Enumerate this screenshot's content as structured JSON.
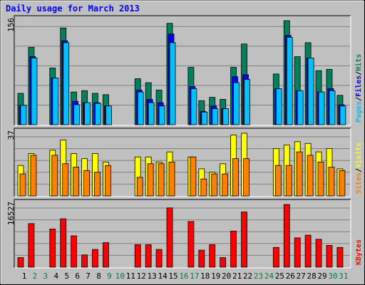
{
  "chart_data": {
    "type": "bar",
    "title": "Daily usage for March 2013",
    "x": [
      1,
      2,
      3,
      4,
      5,
      6,
      7,
      8,
      9,
      10,
      11,
      12,
      13,
      14,
      15,
      16,
      17,
      18,
      19,
      20,
      21,
      22,
      23,
      24,
      25,
      26,
      27,
      28,
      29,
      30,
      31
    ],
    "x_label_colors": [
      "#000000",
      "#008040",
      "#008040",
      "#000000",
      "#000000",
      "#000000",
      "#000000",
      "#000000",
      "#008040",
      "#008040",
      "#000000",
      "#000000",
      "#000000",
      "#000000",
      "#000000",
      "#008040",
      "#008040",
      "#000000",
      "#000000",
      "#000000",
      "#000000",
      "#000000",
      "#008040",
      "#008040",
      "#000000",
      "#000000",
      "#000000",
      "#000000",
      "#000000",
      "#008040",
      "#008040"
    ],
    "legend_separator": "/",
    "panels": [
      {
        "ylim": [
          0,
          156
        ],
        "series": [
          {
            "name": "Hits",
            "color": "#00805c",
            "values": [
              47,
              116,
              0,
              85,
              145,
              49,
              51,
              47,
              45,
              0,
              0,
              69,
              63,
              52,
              152,
              0,
              86,
              36,
              41,
              38,
              86,
              121,
              0,
              0,
              76,
              156,
              102,
              123,
              81,
              83,
              44
            ]
          },
          {
            "name": "Files",
            "color": "#0000ff",
            "values": [
              29,
              102,
              0,
              70,
              126,
              35,
              33,
              33,
              28,
              0,
              0,
              52,
              38,
              33,
              136,
              0,
              57,
              20,
              28,
              24,
              72,
              75,
              0,
              0,
              54,
              134,
              51,
              100,
              49,
              54,
              30
            ]
          },
          {
            "name": "Pages",
            "color": "#00c0ff",
            "values": [
              29,
              100,
              0,
              70,
              123,
              30,
              33,
              32,
              28,
              0,
              0,
              49,
              33,
              28,
              123,
              0,
              54,
              19,
              24,
              24,
              63,
              68,
              0,
              0,
              54,
              131,
              51,
              100,
              49,
              51,
              28
            ]
          }
        ]
      },
      {
        "ylim": [
          0,
          37
        ],
        "series": [
          {
            "name": "Visits",
            "color": "#ffff00",
            "values": [
              18,
              25,
              0,
              27,
              33,
              25,
              22,
              25,
              20,
              0,
              0,
              23,
              23,
              20,
              26,
              0,
              23,
              16,
              14,
              19,
              36,
              37,
              0,
              0,
              28,
              30,
              32,
              31,
              26,
              28,
              16
            ]
          },
          {
            "name": "Sites",
            "color": "#ff8000",
            "values": [
              13,
              24,
              0,
              24,
              19,
              17,
              15,
              14,
              18,
              0,
              0,
              11,
              19,
              19,
              20,
              0,
              23,
              10,
              13,
              13,
              22,
              22,
              0,
              0,
              18,
              18,
              26,
              24,
              20,
              17,
              15
            ]
          }
        ]
      },
      {
        "ylim": [
          0,
          16527
        ],
        "series": [
          {
            "name": "KBytes",
            "color": "#ff0000",
            "values": [
              2515,
              11497,
              0,
              10060,
              12754,
              8263,
              3234,
              4671,
              6467,
              0,
              0,
              5928,
              5928,
              4671,
              15629,
              0,
              12036,
              4491,
              5928,
              2515,
              9521,
              14551,
              0,
              0,
              5210,
              16527,
              7725,
              8443,
              7365,
              5749,
              5210
            ]
          }
        ]
      }
    ]
  }
}
